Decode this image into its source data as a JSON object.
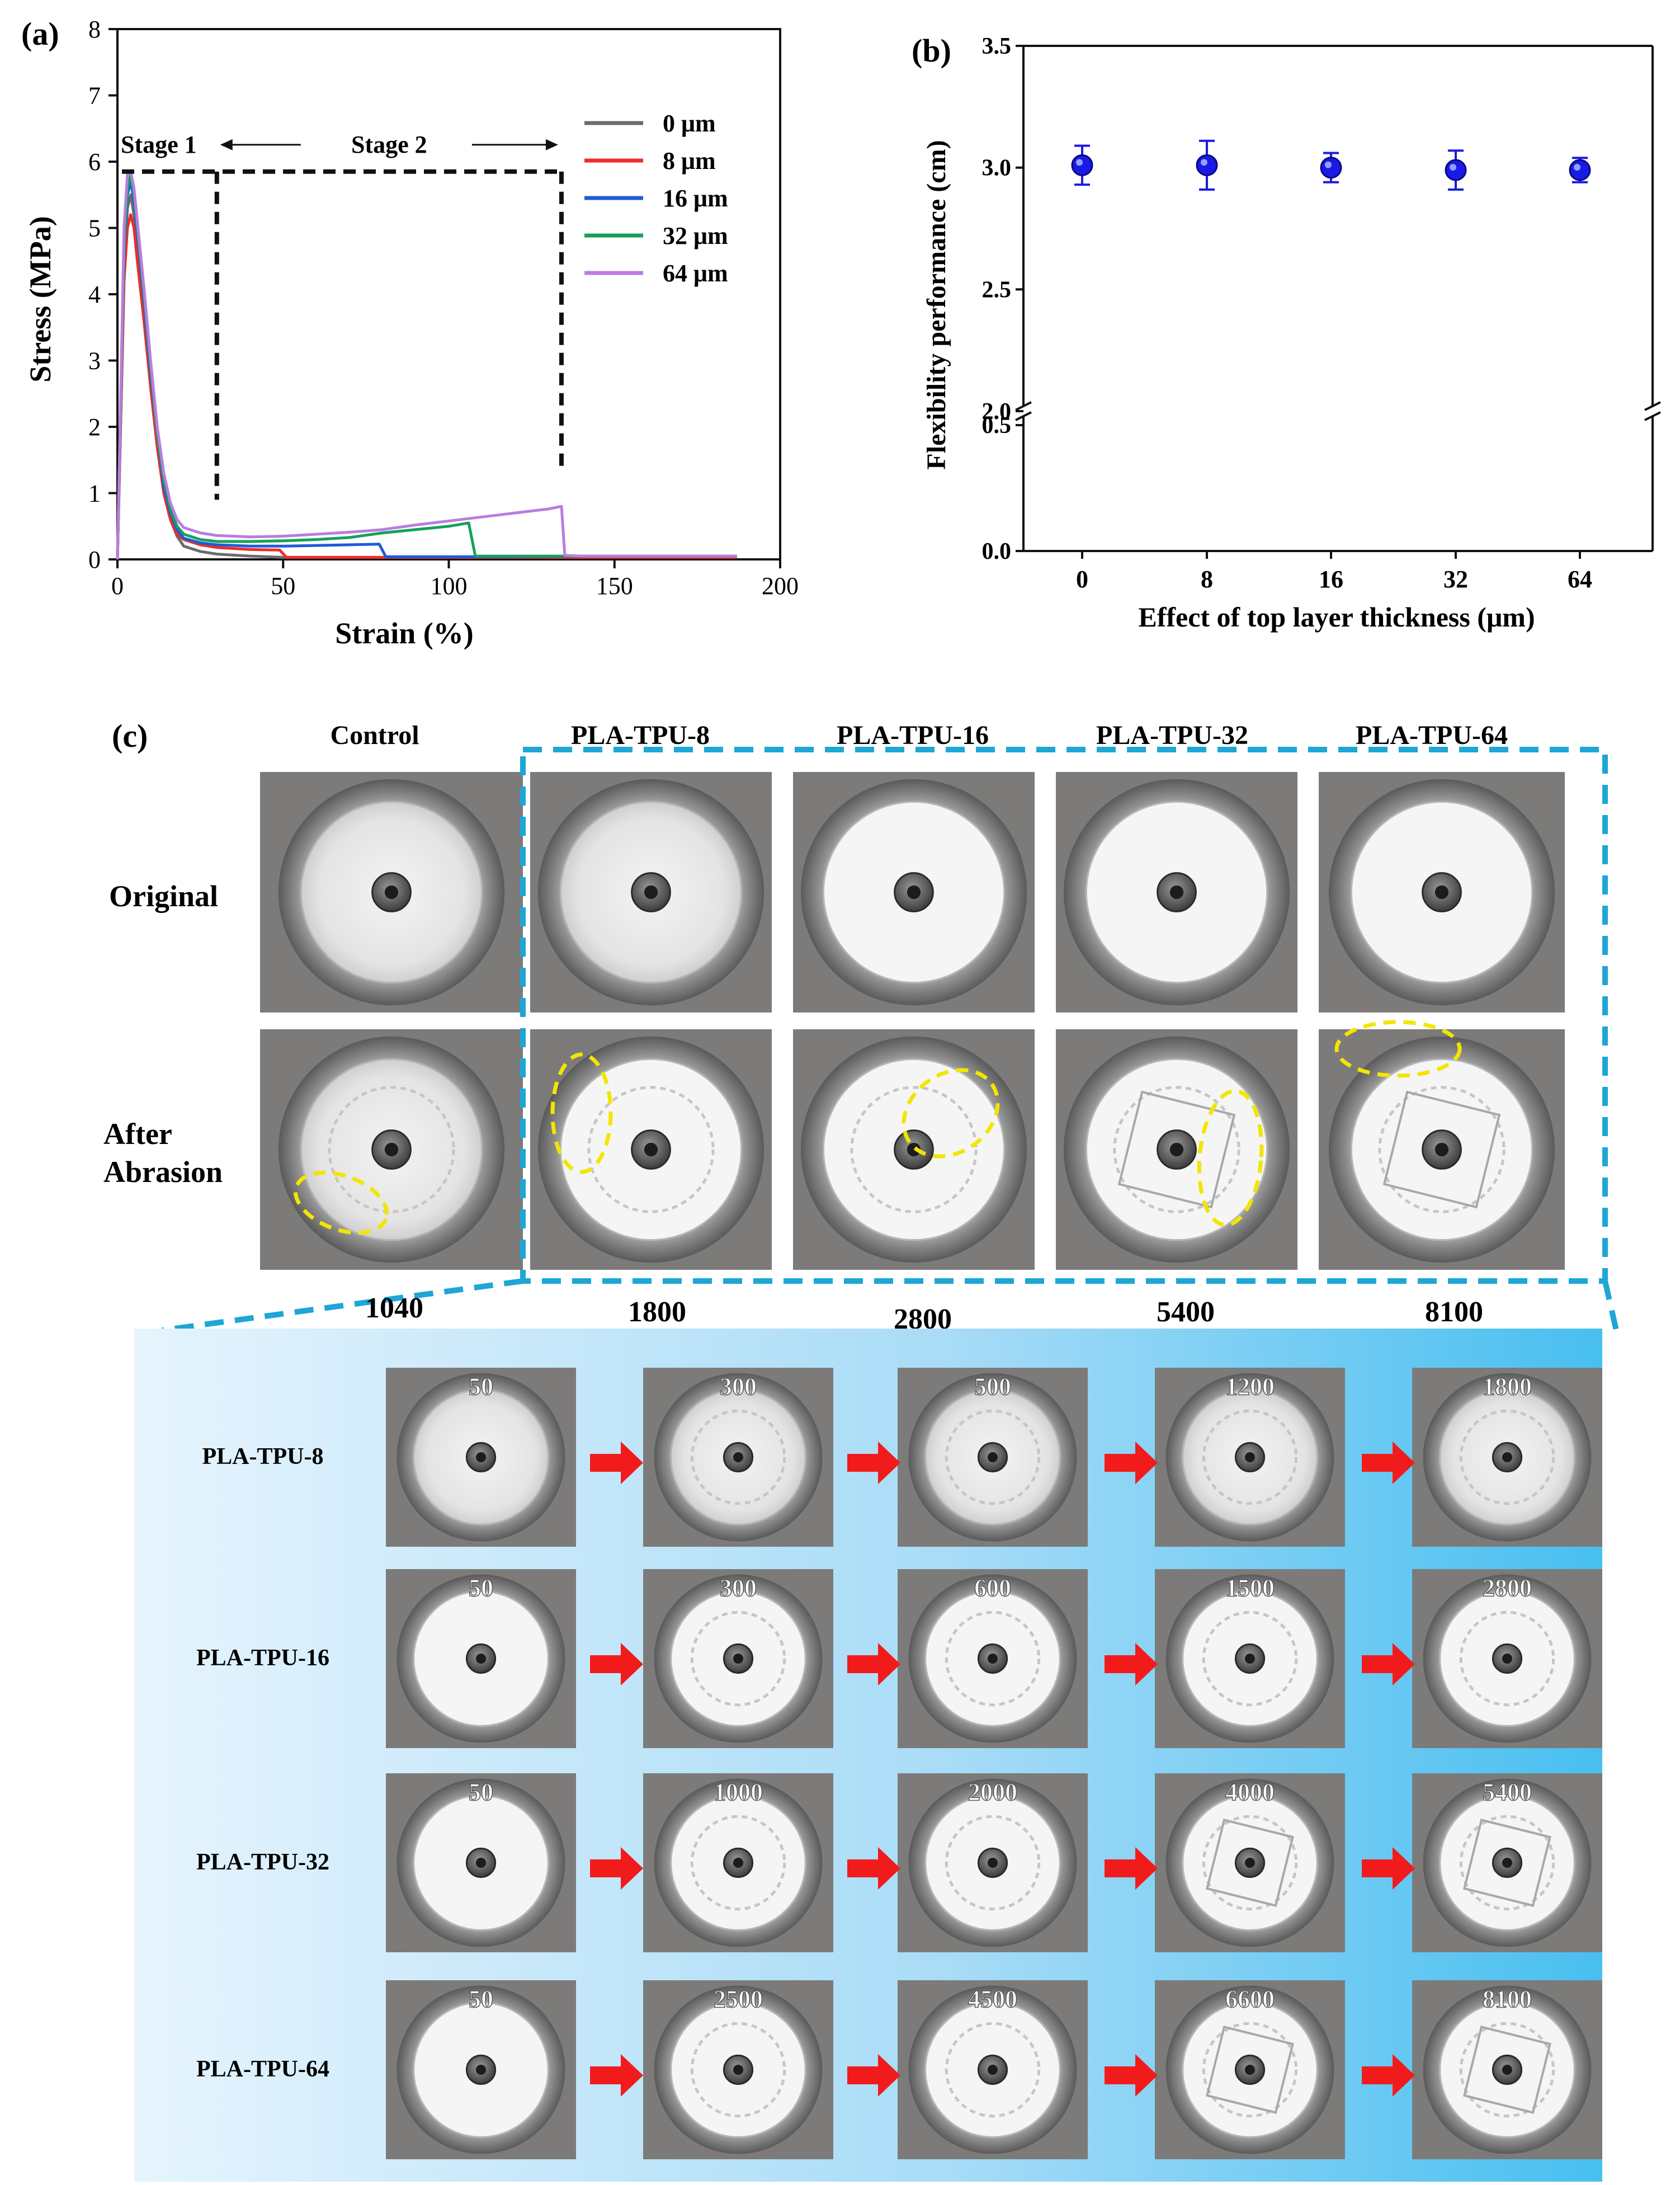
{
  "chart_data": [
    {
      "panel": "(a)",
      "type": "line",
      "xlabel": "Strain (%)",
      "ylabel": "Stress (MPa)",
      "xlim": [
        0,
        200
      ],
      "ylim": [
        0,
        8
      ],
      "xticks": [
        "0",
        "50",
        "100",
        "150",
        "200"
      ],
      "yticks": [
        "0",
        "1",
        "2",
        "3",
        "4",
        "5",
        "6",
        "7",
        "8"
      ],
      "stage_labels": [
        "Stage 1",
        "Stage 2"
      ],
      "annotations": {
        "stage_line_stress": 5.85,
        "stage1_end_strain": 30,
        "stage2_end_strain": 134
      },
      "series": [
        {
          "name": "0 μm",
          "color": "#6b6b6b",
          "x": [
            0,
            2,
            3,
            4,
            5,
            6,
            8,
            10,
            12,
            14,
            16,
            18,
            20,
            25,
            30,
            40,
            50,
            60,
            80,
            100,
            120,
            140,
            160,
            187
          ],
          "y": [
            0,
            4.3,
            5.3,
            5.5,
            5.2,
            4.6,
            3.7,
            2.6,
            1.7,
            1.0,
            0.6,
            0.35,
            0.2,
            0.12,
            0.08,
            0.05,
            0.03,
            0.03,
            0.03,
            0.03,
            0.03,
            0.03,
            0.03,
            0.03
          ]
        },
        {
          "name": "8 μm",
          "color": "#ee2b2b",
          "x": [
            0,
            2,
            3,
            4,
            5,
            6,
            8,
            10,
            12,
            14,
            16,
            18,
            20,
            25,
            30,
            40,
            49,
            51,
            60,
            80,
            100,
            120,
            140,
            160,
            187
          ],
          "y": [
            0,
            4.2,
            5.0,
            5.2,
            5.0,
            4.5,
            3.6,
            2.6,
            1.7,
            1.0,
            0.6,
            0.38,
            0.3,
            0.22,
            0.18,
            0.15,
            0.14,
            0.03,
            0.03,
            0.03,
            0.03,
            0.03,
            0.03,
            0.03,
            0.03
          ]
        },
        {
          "name": "16 μm",
          "color": "#1e5bd8",
          "x": [
            0,
            2,
            3,
            4,
            5,
            6,
            8,
            10,
            12,
            14,
            16,
            18,
            20,
            25,
            30,
            40,
            50,
            60,
            70,
            79,
            81,
            100,
            120,
            140,
            160,
            187
          ],
          "y": [
            0,
            4.6,
            5.5,
            5.7,
            5.4,
            4.9,
            3.9,
            2.8,
            1.9,
            1.1,
            0.7,
            0.45,
            0.32,
            0.25,
            0.22,
            0.2,
            0.2,
            0.21,
            0.22,
            0.23,
            0.04,
            0.04,
            0.04,
            0.05,
            0.05,
            0.05
          ]
        },
        {
          "name": "32 μm",
          "color": "#16a05a",
          "x": [
            0,
            2,
            3,
            4,
            5,
            6,
            8,
            10,
            12,
            14,
            16,
            18,
            20,
            25,
            30,
            40,
            50,
            60,
            70,
            80,
            90,
            100,
            106,
            108,
            120,
            140,
            160,
            187
          ],
          "y": [
            0,
            4.7,
            5.6,
            5.8,
            5.5,
            5.0,
            4.0,
            2.9,
            1.9,
            1.2,
            0.75,
            0.5,
            0.38,
            0.3,
            0.27,
            0.27,
            0.28,
            0.3,
            0.33,
            0.4,
            0.45,
            0.5,
            0.55,
            0.05,
            0.05,
            0.05,
            0.05,
            0.05
          ]
        },
        {
          "name": "64 μm",
          "color": "#b97de0",
          "x": [
            0,
            2,
            3,
            4,
            5,
            6,
            8,
            10,
            12,
            14,
            16,
            18,
            20,
            25,
            30,
            40,
            50,
            60,
            70,
            80,
            90,
            100,
            110,
            120,
            130,
            134,
            135,
            140,
            160,
            187
          ],
          "y": [
            0,
            5.0,
            5.8,
            5.85,
            5.6,
            5.1,
            4.1,
            3.0,
            2.0,
            1.3,
            0.85,
            0.6,
            0.48,
            0.4,
            0.36,
            0.34,
            0.35,
            0.38,
            0.41,
            0.45,
            0.52,
            0.58,
            0.64,
            0.7,
            0.76,
            0.8,
            0.06,
            0.05,
            0.05,
            0.05
          ]
        }
      ]
    },
    {
      "panel": "(b)",
      "type": "scatter",
      "xlabel": "Effect of  top layer thickness (μm)",
      "ylabel": "Flexibility performance (cm)",
      "categories": [
        "0",
        "8",
        "16",
        "32",
        "64"
      ],
      "values": [
        3.01,
        3.01,
        3.0,
        2.99,
        2.99
      ],
      "errors": [
        0.08,
        0.1,
        0.06,
        0.08,
        0.05
      ],
      "color": "#1a1ae6",
      "ylim": [
        0,
        3.5
      ],
      "axis_break": [
        0.5,
        2.0
      ],
      "yticks_upper": [
        "2.0",
        "2.5",
        "3.0",
        "3.5"
      ],
      "yticks_lower": [
        "0.0",
        "0.5"
      ]
    }
  ],
  "panel_c": {
    "label": "(c)",
    "column_headers": [
      "Control",
      "PLA-TPU-8",
      "PLA-TPU-16",
      "PLA-TPU-32",
      "PLA-TPU-64"
    ],
    "row_labels": [
      "Original",
      "After\nAbrasion"
    ],
    "cycles_to_failure": [
      "1040",
      "1800",
      "2800",
      "5400",
      "8100"
    ],
    "progression": [
      {
        "label": "PLA-TPU-8",
        "cycles": [
          "50",
          "300",
          "500",
          "1200",
          "1800"
        ]
      },
      {
        "label": "PLA-TPU-16",
        "cycles": [
          "50",
          "300",
          "600",
          "1500",
          "2800"
        ]
      },
      {
        "label": "PLA-TPU-32",
        "cycles": [
          "50",
          "1000",
          "2000",
          "4000",
          "5400"
        ]
      },
      {
        "label": "PLA-TPU-64",
        "cycles": [
          "50",
          "2500",
          "4500",
          "6600",
          "8100"
        ]
      }
    ]
  }
}
